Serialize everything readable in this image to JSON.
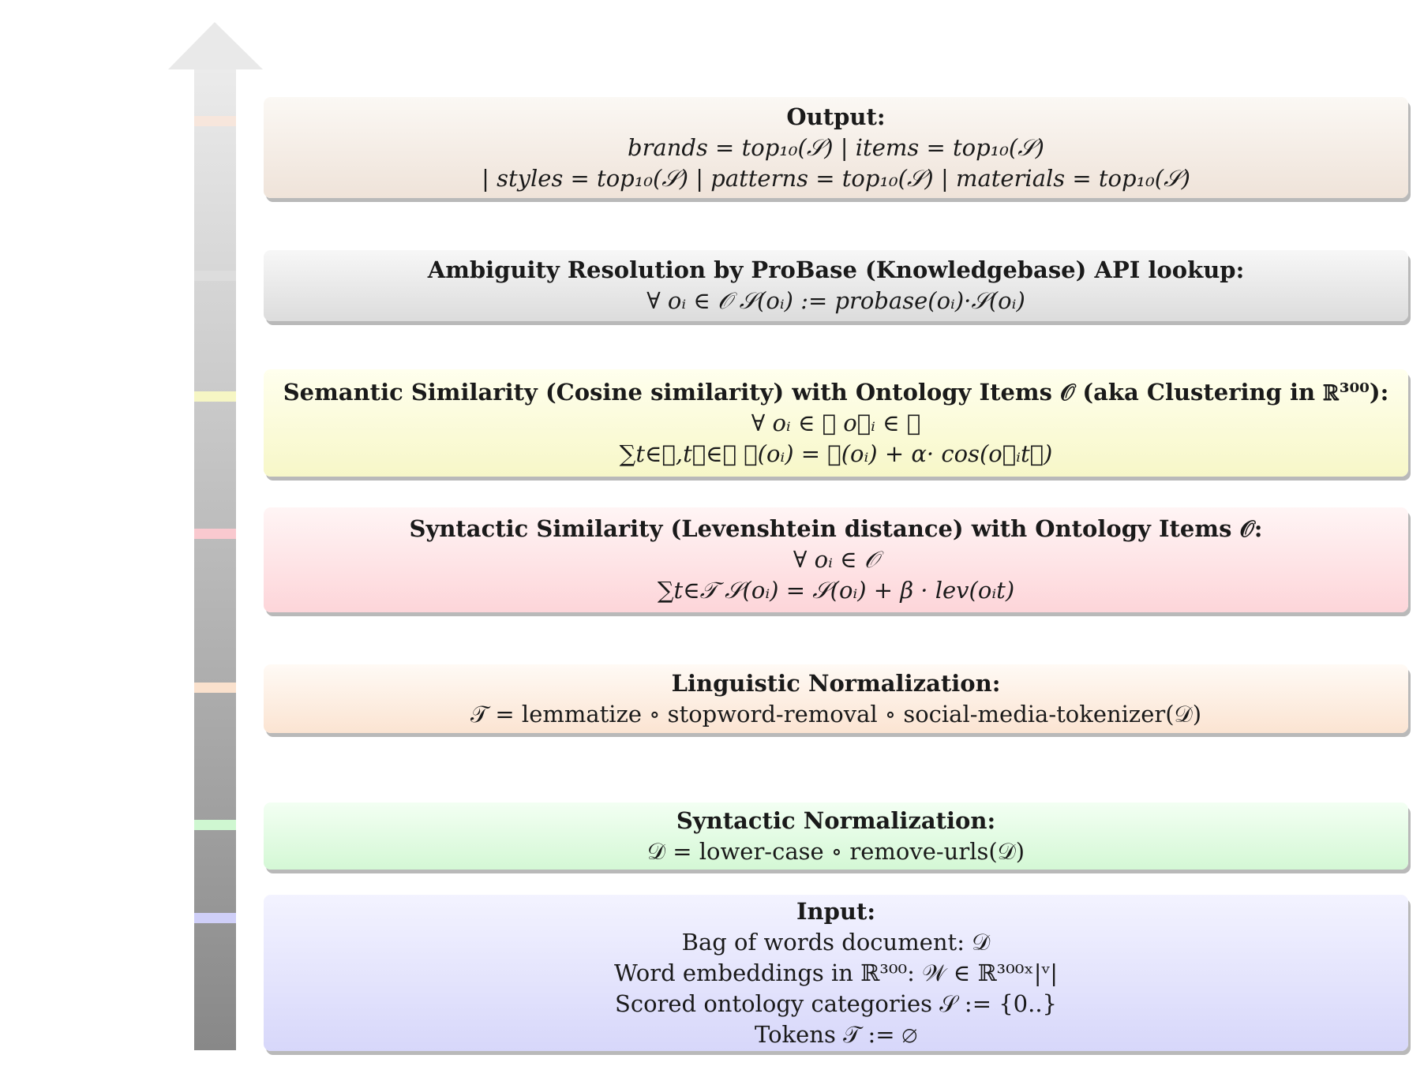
{
  "stages": {
    "output": {
      "title": "Output:",
      "lines": [
        "brands = top₁₀(𝒮) | items = top₁₀(𝒮)",
        "| styles = top₁₀(𝒮) | patterns = top₁₀(𝒮) | materials = top₁₀(𝒮)"
      ]
    },
    "ambiguity": {
      "title": "Ambiguity Resolution by ProBase (Knowledgebase) API lookup:",
      "lines": [
        "∀ oᵢ ∈ 𝒪 𝒮(oᵢ) := probase(oᵢ)·𝒮(oᵢ)"
      ]
    },
    "semantic": {
      "title": "Semantic Similarity (Cosine similarity) with Ontology Items 𝒪 (aka Clustering in ℝ³⁰⁰):",
      "lines": [
        "∀ oᵢ ∈ 𝒪      o⃗ᵢ ∈ 𝒲",
        "∑t∈𝒯,t⃗∈𝒲 𝒮(oᵢ) = 𝒮(oᵢ) + α· cos(o⃗ᵢt⃗)"
      ]
    },
    "syntactic_similarity": {
      "title": "Syntactic Similarity (Levenshtein distance) with Ontology Items 𝒪:",
      "lines": [
        "∀ oᵢ ∈ 𝒪",
        "∑t∈𝒯 𝒮(oᵢ) = 𝒮(oᵢ) + β · lev(oᵢt)"
      ]
    },
    "linguistic": {
      "title": "Linguistic Normalization:",
      "lines": [
        "𝒯 = lemmatize ∘ stopword-removal ∘ social-media-tokenizer(𝒟)"
      ]
    },
    "syntactic_normalization": {
      "title": "Syntactic Normalization:",
      "lines": [
        "𝒟 = lower-case ∘ remove-urls(𝒟)"
      ]
    },
    "input": {
      "title": "Input:",
      "lines": [
        "Bag of words document: 𝒟",
        "Word embeddings in ℝ³⁰⁰: 𝒲 ∈ ℝ³⁰⁰ˣ|ᵛ|",
        "Scored ontology categories 𝒮 := {0..}",
        "Tokens 𝒯 := ∅"
      ]
    }
  },
  "colors": {
    "output": "#f4e6db",
    "ambiguity": "#e2e2e2",
    "semantic": "#f7f7c6",
    "syntactic_similarity": "#fcd2d7",
    "linguistic": "#fbe0cb",
    "syntactic_normalization": "#d4f8d5",
    "input": "#d7d7fa"
  }
}
